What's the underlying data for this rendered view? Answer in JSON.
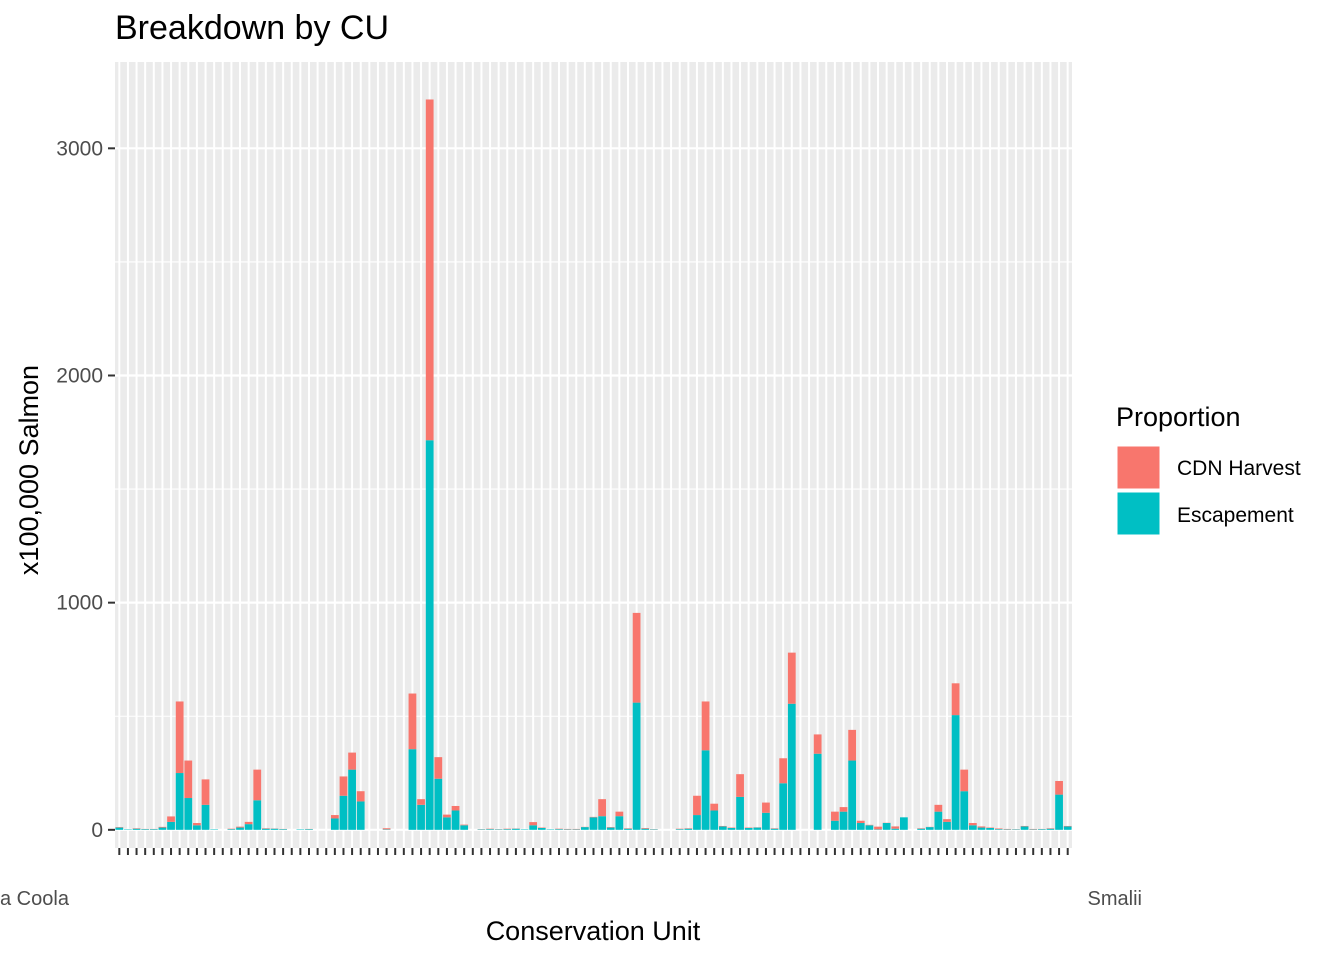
{
  "chart_data": {
    "type": "bar",
    "stacked": true,
    "title": "Breakdown by CU",
    "xlabel": "Conservation Unit",
    "ylabel": "x100,000 Salmon",
    "ylim": [
      -80,
      3380
    ],
    "yticks": [
      0,
      1000,
      2000,
      3000
    ],
    "grid": true,
    "legend": {
      "title": "Proportion",
      "placement": "right",
      "entries": [
        {
          "label": "CDN Harvest",
          "color": "#F8766D"
        },
        {
          "label": "Escapement",
          "color": "#00BFC4"
        }
      ]
    },
    "x_tick_labels_visible": {
      "first": "a Coola",
      "last": "Smalii"
    },
    "series": [
      {
        "name": "CDN Harvest",
        "color": "#F8766D",
        "values": [
          2,
          0,
          2,
          1,
          1,
          3,
          24,
          315,
          165,
          10,
          112,
          0,
          0,
          2,
          4,
          10,
          135,
          2,
          1,
          1,
          0,
          0,
          1,
          0,
          0,
          15,
          85,
          75,
          45,
          0,
          0,
          5,
          0,
          0,
          245,
          25,
          1500,
          95,
          12,
          20,
          3,
          0,
          1,
          2,
          1,
          2,
          1,
          0,
          14,
          2,
          0,
          2,
          2,
          2,
          1,
          2,
          75,
          2,
          20,
          2,
          395,
          3,
          1,
          0,
          0,
          2,
          2,
          85,
          215,
          30,
          2,
          2,
          100,
          2,
          1,
          45,
          2,
          110,
          225,
          0,
          0,
          85,
          0,
          40,
          20,
          135,
          10,
          2,
          12,
          1,
          10,
          0,
          0,
          2,
          1,
          30,
          12,
          140,
          95,
          10,
          5,
          2,
          3,
          2,
          1,
          2,
          2,
          1,
          2,
          60,
          2
        ]
      },
      {
        "name": "Escapement",
        "color": "#00BFC4",
        "values": [
          10,
          2,
          5,
          3,
          3,
          10,
          35,
          250,
          140,
          20,
          110,
          2,
          0,
          3,
          10,
          25,
          130,
          5,
          5,
          3,
          0,
          2,
          3,
          0,
          0,
          50,
          150,
          265,
          125,
          0,
          0,
          2,
          0,
          0,
          355,
          110,
          1715,
          225,
          55,
          85,
          20,
          0,
          2,
          3,
          2,
          3,
          5,
          2,
          20,
          8,
          2,
          3,
          2,
          2,
          12,
          55,
          60,
          10,
          60,
          5,
          560,
          5,
          2,
          0,
          0,
          3,
          5,
          65,
          350,
          85,
          15,
          8,
          145,
          8,
          10,
          75,
          5,
          205,
          555,
          0,
          0,
          335,
          0,
          40,
          80,
          305,
          30,
          20,
          2,
          30,
          5,
          55,
          0,
          5,
          12,
          80,
          35,
          505,
          170,
          20,
          10,
          8,
          3,
          2,
          2,
          15,
          2,
          3,
          5,
          155,
          15
        ]
      }
    ]
  }
}
